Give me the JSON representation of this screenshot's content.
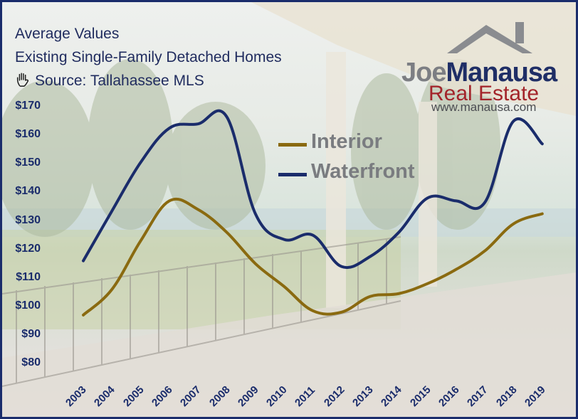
{
  "title_lines": [
    "Average Values",
    "Existing Single-Family Detached Homes",
    "Source: Tallahassee MLS"
  ],
  "logo": {
    "name_part1": "Joe",
    "name_part2": "Manausa",
    "subtitle": "Real Estate",
    "url": "www.manausa.com"
  },
  "colors": {
    "interior": "#8a6a10",
    "waterfront": "#1a2c6b",
    "axis_text": "#1a2c6b"
  },
  "icons": {
    "source": "hand-icon"
  },
  "chart_data": {
    "type": "line",
    "title": "Average Values",
    "subtitle": "Existing Single-Family Detached Homes",
    "x": [
      "2003",
      "2004",
      "2005",
      "2006",
      "2007",
      "2008",
      "2009",
      "2010",
      "2011",
      "2012",
      "2013",
      "2014",
      "2015",
      "2016",
      "2017",
      "2018",
      "2019"
    ],
    "series": [
      {
        "name": "Interior",
        "values": [
          97,
          106,
          123,
          137,
          134,
          126,
          115,
          107,
          98.5,
          98,
          103.5,
          104.5,
          108,
          113,
          119.5,
          129,
          132.5
        ]
      },
      {
        "name": "Waterfront",
        "values": [
          116,
          133.5,
          150.5,
          162.5,
          164,
          166.5,
          132.5,
          123.5,
          125,
          114,
          117.5,
          126,
          138,
          137,
          136.5,
          165,
          157
        ]
      }
    ],
    "yticks": [
      "$80",
      "$90",
      "$100",
      "$110",
      "$120",
      "$130",
      "$140",
      "$150",
      "$160",
      "$170"
    ],
    "ylim": [
      80,
      170
    ],
    "legend_position": "top-center",
    "grid": false
  }
}
